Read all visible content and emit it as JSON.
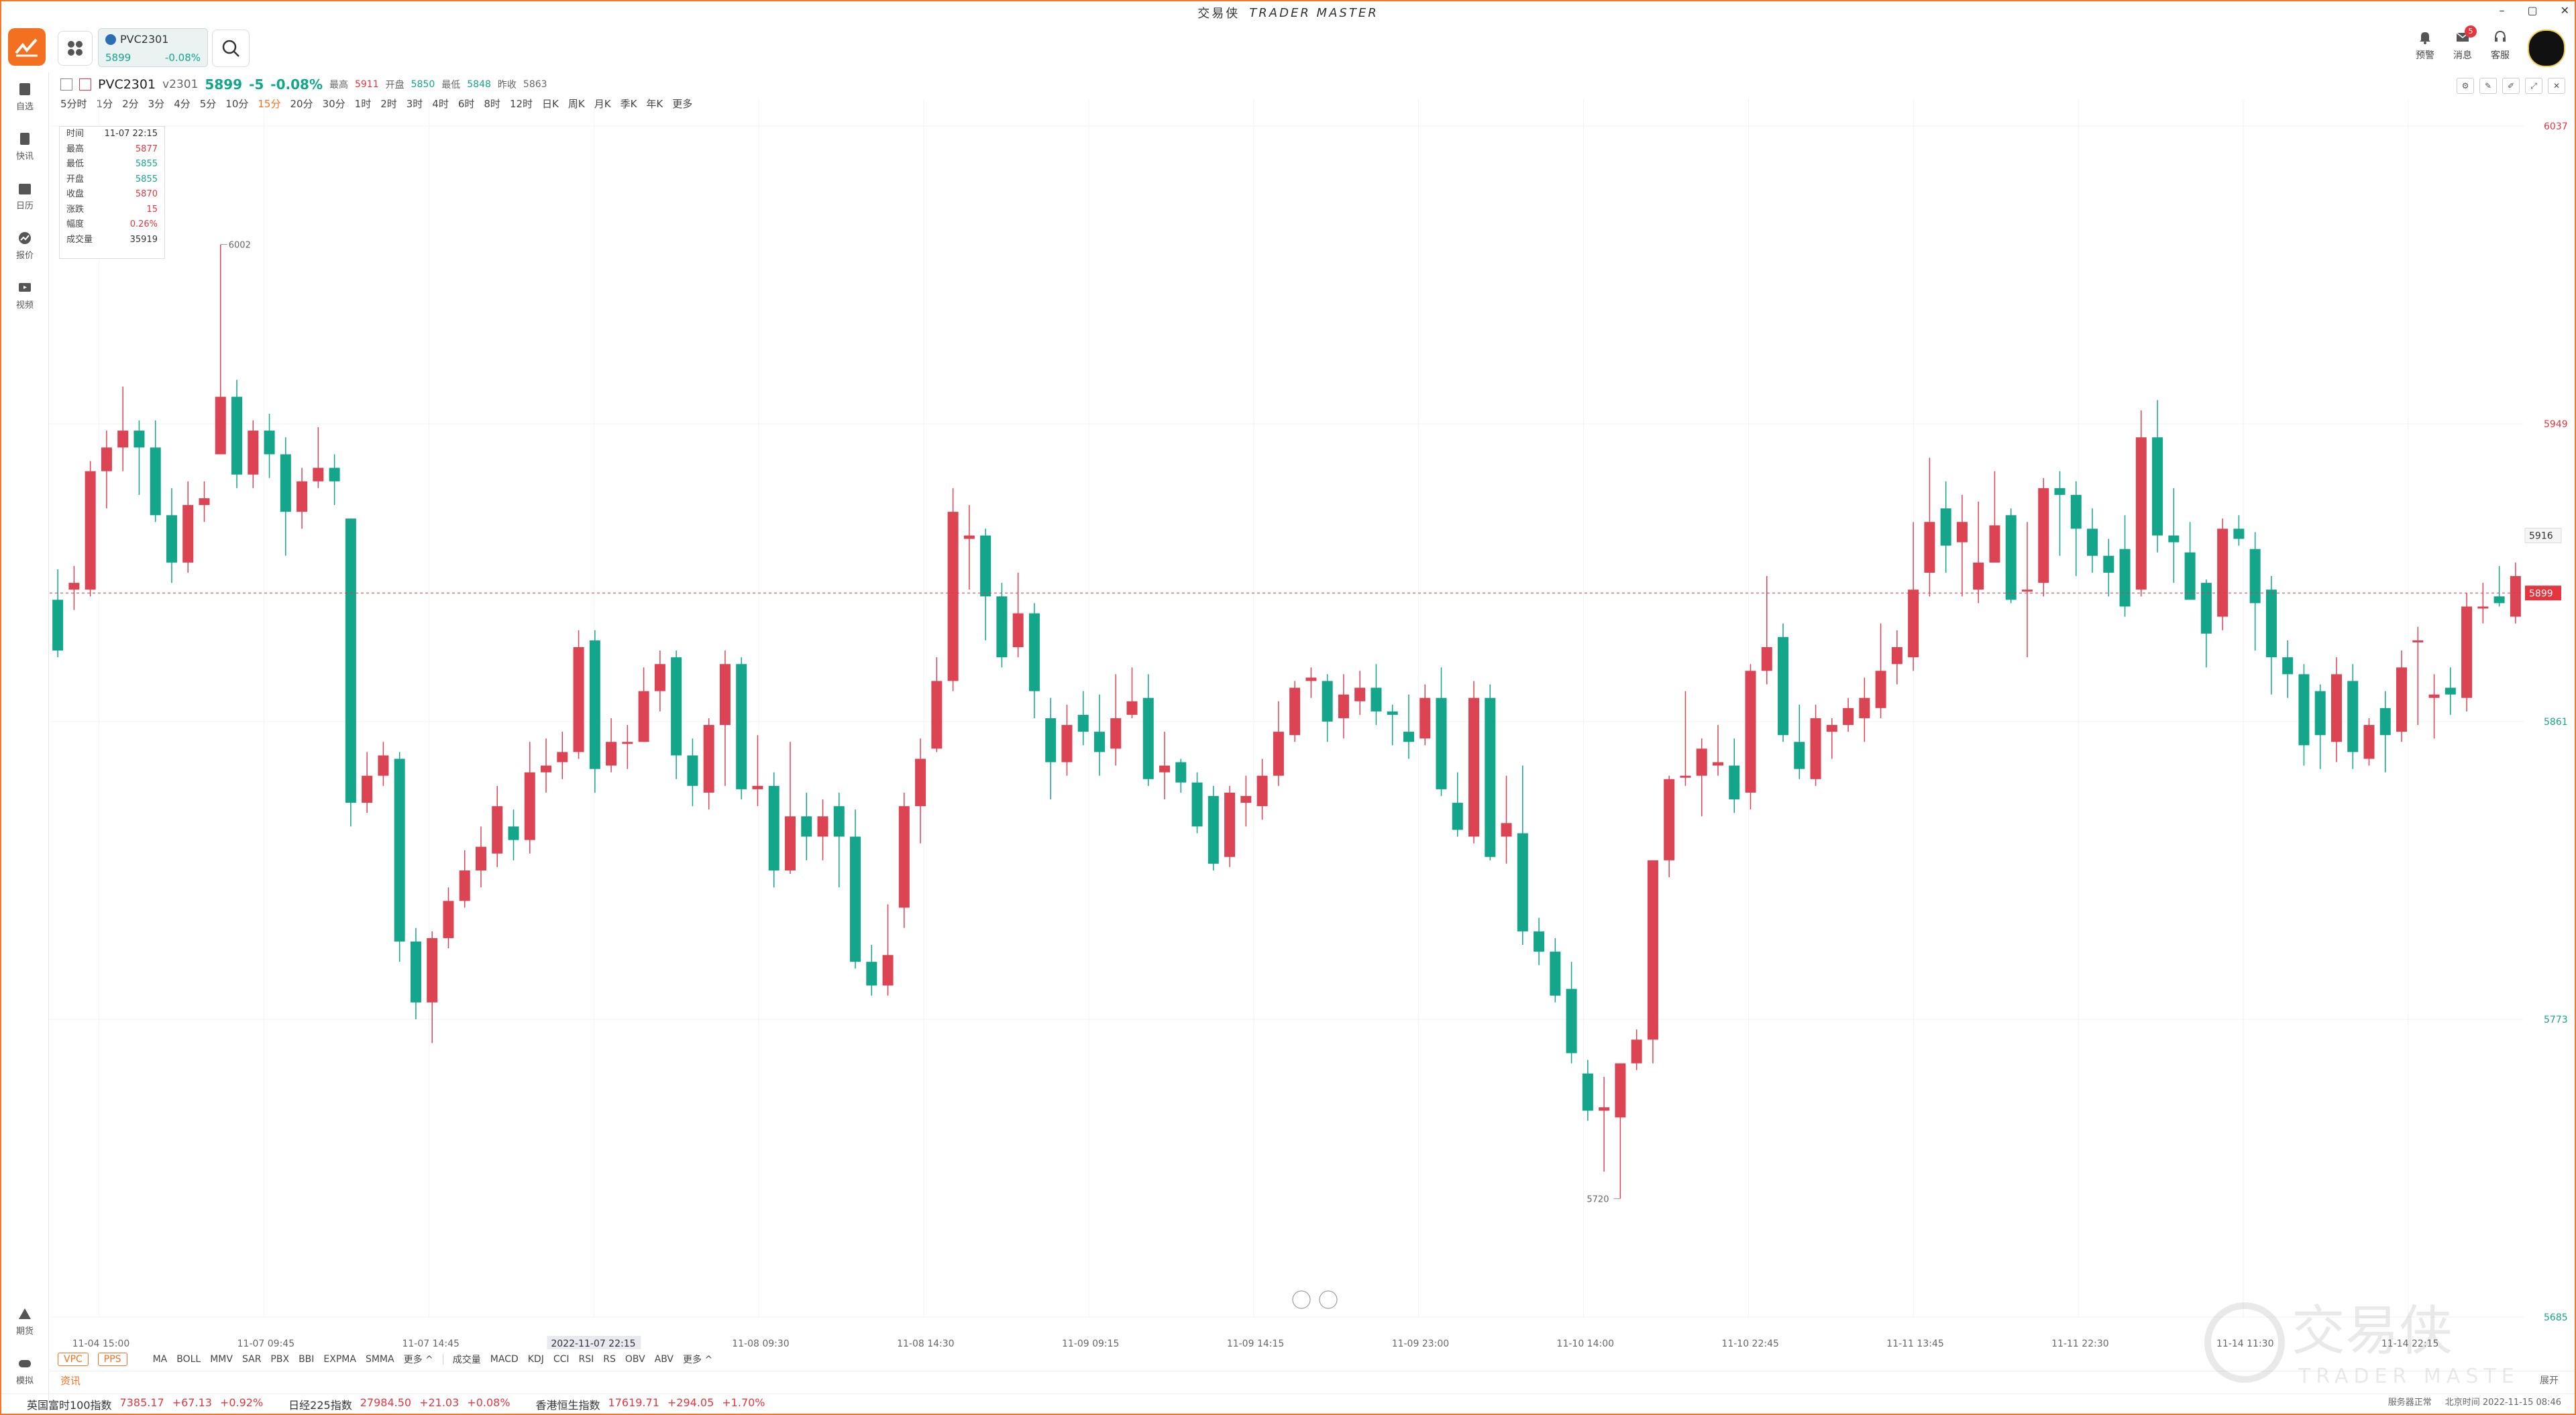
{
  "window": {
    "title_cn": "交易侠",
    "title_en": "TRADER MASTER",
    "ctrl_min": "–",
    "ctrl_max": "▢",
    "ctrl_close": "✕"
  },
  "header": {
    "quote_card": {
      "name": "PVC2301",
      "price": "5899",
      "change": "-0.08%"
    },
    "icons": [
      {
        "label": "预警"
      },
      {
        "label": "消息",
        "badge": "5"
      },
      {
        "label": "客服"
      }
    ]
  },
  "sidebar": {
    "top": [
      "自选",
      "快讯",
      "日历",
      "报价",
      "视频"
    ],
    "bottom": [
      "期货",
      "模拟"
    ]
  },
  "instrument": {
    "name": "PVC2301",
    "code": "v2301",
    "last": "5899",
    "chg": "-5",
    "pct": "-0.08%",
    "high_label": "最高",
    "high": "5911",
    "open_label": "开盘",
    "open": "5850",
    "low_label": "最低",
    "low": "5848",
    "prev_label": "昨收",
    "prev": "5863"
  },
  "timeframes": [
    "5分时",
    "1分",
    "2分",
    "3分",
    "4分",
    "5分",
    "10分",
    "15分",
    "20分",
    "30分",
    "1时",
    "2时",
    "3时",
    "4时",
    "6时",
    "8时",
    "12时",
    "日K",
    "周K",
    "月K",
    "季K",
    "年K",
    "更多"
  ],
  "active_timeframe": "15分",
  "tooltip": [
    {
      "k": "时间",
      "v": "11-07 22:15",
      "c": "#333"
    },
    {
      "k": "最高",
      "v": "5877",
      "c": "#e5363f"
    },
    {
      "k": "最低",
      "v": "5855",
      "c": "#12a68a"
    },
    {
      "k": "开盘",
      "v": "5855",
      "c": "#12a68a"
    },
    {
      "k": "收盘",
      "v": "5870",
      "c": "#e5363f"
    },
    {
      "k": "涨跌",
      "v": "15",
      "c": "#e5363f"
    },
    {
      "k": "幅度",
      "v": "0.26%",
      "c": "#e5363f"
    },
    {
      "k": "成交量",
      "v": "35919",
      "c": "#333"
    }
  ],
  "indicators": {
    "main": [
      "VPC",
      "PPS"
    ],
    "overlays": [
      "MA",
      "BOLL",
      "MMV",
      "SAR",
      "PBX",
      "BBI",
      "EXPMA",
      "SMMA",
      "更多 ^"
    ],
    "sub": [
      "成交量",
      "MACD",
      "KDJ",
      "CCI",
      "RSI",
      "RS",
      "OBV",
      "ABV",
      "更多 ^"
    ]
  },
  "news": {
    "label": "资讯",
    "more_label": "展开"
  },
  "ticker": [
    {
      "name": "英国富时100指数",
      "price": "7385.17",
      "chg": "+67.13",
      "pct": "+0.92%"
    },
    {
      "name": "日经225指数",
      "price": "27984.50",
      "chg": "+21.03",
      "pct": "+0.08%"
    },
    {
      "name": "香港恒生指数",
      "price": "17619.71",
      "chg": "+294.05",
      "pct": "+1.70%"
    }
  ],
  "status": {
    "server": "服务器正常",
    "time": "北京时间 2022-11-15 08:46"
  },
  "watermark": {
    "cn": "交易侠",
    "en": "TRADER MASTER"
  },
  "chart_data": {
    "type": "candlestick",
    "ylim": [
      5685,
      6037
    ],
    "y_ticks": [
      6037,
      5949,
      5916,
      5899,
      5861,
      5773,
      5685
    ],
    "last_price": 5899,
    "crosshair_price": 5916,
    "x_labels": [
      "11-04 15:00",
      "11-07 09:45",
      "11-07 14:45",
      "2022-11-07 22:15",
      "11-08 09:30",
      "11-08 14:30",
      "11-09 09:15",
      "11-09 14:15",
      "11-09 23:00",
      "11-10 14:00",
      "11-10 22:45",
      "11-11 13:45",
      "11-11 22:30",
      "11-14 11:30",
      "11-14 22:15"
    ],
    "annotations": [
      {
        "text": "6002"
      },
      {
        "text": "5720"
      }
    ],
    "candles": [
      [
        5897,
        5882,
        5906,
        5880
      ],
      [
        5900,
        5902,
        5907,
        5894
      ],
      [
        5900,
        5935,
        5938,
        5898
      ],
      [
        5935,
        5942,
        5947,
        5924
      ],
      [
        5942,
        5947,
        5960,
        5935
      ],
      [
        5947,
        5942,
        5950,
        5928
      ],
      [
        5942,
        5922,
        5950,
        5920
      ],
      [
        5922,
        5908,
        5930,
        5902
      ],
      [
        5908,
        5925,
        5932,
        5905
      ],
      [
        5925,
        5927,
        5932,
        5920
      ],
      [
        5940,
        5957,
        6002,
        5955
      ],
      [
        5957,
        5934,
        5962,
        5930
      ],
      [
        5934,
        5947,
        5950,
        5930
      ],
      [
        5947,
        5940,
        5952,
        5933
      ],
      [
        5940,
        5923,
        5945,
        5910
      ],
      [
        5923,
        5932,
        5936,
        5918
      ],
      [
        5932,
        5936,
        5948,
        5930
      ],
      [
        5936,
        5932,
        5940,
        5925
      ],
      [
        5921,
        5837,
        5921,
        5830
      ],
      [
        5837,
        5845,
        5852,
        5834
      ],
      [
        5845,
        5851,
        5855,
        5842
      ],
      [
        5850,
        5796,
        5852,
        5790
      ],
      [
        5796,
        5778,
        5800,
        5773
      ],
      [
        5778,
        5797,
        5799,
        5766
      ],
      [
        5797,
        5808,
        5812,
        5794
      ],
      [
        5808,
        5817,
        5823,
        5806
      ],
      [
        5817,
        5824,
        5830,
        5812
      ],
      [
        5822,
        5836,
        5842,
        5818
      ],
      [
        5830,
        5826,
        5835,
        5820
      ],
      [
        5826,
        5846,
        5855,
        5822
      ],
      [
        5846,
        5848,
        5856,
        5840
      ],
      [
        5849,
        5852,
        5858,
        5844
      ],
      [
        5852,
        5883,
        5888,
        5850
      ],
      [
        5885,
        5847,
        5888,
        5840
      ],
      [
        5848,
        5855,
        5862,
        5846
      ],
      [
        5855,
        5855,
        5860,
        5847
      ],
      [
        5855,
        5870,
        5877,
        5855
      ],
      [
        5870,
        5878,
        5882,
        5864
      ],
      [
        5880,
        5851,
        5882,
        5844
      ],
      [
        5851,
        5842,
        5856,
        5836
      ],
      [
        5840,
        5860,
        5862,
        5835
      ],
      [
        5860,
        5878,
        5882,
        5842
      ],
      [
        5878,
        5841,
        5880,
        5838
      ],
      [
        5841,
        5842,
        5857,
        5836
      ],
      [
        5842,
        5817,
        5846,
        5812
      ],
      [
        5817,
        5833,
        5855,
        5816
      ],
      [
        5833,
        5827,
        5840,
        5820
      ],
      [
        5827,
        5833,
        5838,
        5820
      ],
      [
        5836,
        5827,
        5840,
        5812
      ],
      [
        5827,
        5790,
        5835,
        5788
      ],
      [
        5790,
        5783,
        5795,
        5780
      ],
      [
        5783,
        5792,
        5807,
        5780
      ],
      [
        5806,
        5836,
        5840,
        5800
      ],
      [
        5836,
        5850,
        5856,
        5825
      ],
      [
        5853,
        5873,
        5880,
        5852
      ],
      [
        5873,
        5923,
        5930,
        5870
      ],
      [
        5915,
        5916,
        5925,
        5900
      ],
      [
        5916,
        5898,
        5918,
        5885
      ],
      [
        5898,
        5880,
        5902,
        5877
      ],
      [
        5883,
        5893,
        5905,
        5880
      ],
      [
        5893,
        5870,
        5896,
        5862
      ],
      [
        5862,
        5849,
        5868,
        5838
      ],
      [
        5849,
        5860,
        5866,
        5845
      ],
      [
        5863,
        5858,
        5870,
        5854
      ],
      [
        5858,
        5852,
        5869,
        5845
      ],
      [
        5853,
        5862,
        5875,
        5848
      ],
      [
        5863,
        5867,
        5877,
        5862
      ],
      [
        5868,
        5844,
        5875,
        5842
      ],
      [
        5846,
        5848,
        5858,
        5838
      ],
      [
        5849,
        5843,
        5850,
        5840
      ],
      [
        5843,
        5830,
        5846,
        5828
      ],
      [
        5839,
        5819,
        5842,
        5817
      ],
      [
        5821,
        5840,
        5842,
        5818
      ],
      [
        5837,
        5839,
        5845,
        5830
      ],
      [
        5836,
        5845,
        5850,
        5832
      ],
      [
        5845,
        5858,
        5867,
        5842
      ],
      [
        5857,
        5871,
        5873,
        5855
      ],
      [
        5873,
        5874,
        5877,
        5868
      ],
      [
        5873,
        5861,
        5875,
        5855
      ],
      [
        5862,
        5869,
        5875,
        5856
      ],
      [
        5867,
        5871,
        5876,
        5863
      ],
      [
        5871,
        5864,
        5878,
        5860
      ],
      [
        5864,
        5863,
        5866,
        5854
      ],
      [
        5858,
        5855,
        5869,
        5850
      ],
      [
        5856,
        5868,
        5872,
        5854
      ],
      [
        5868,
        5841,
        5877,
        5839
      ],
      [
        5837,
        5829,
        5846,
        5827
      ],
      [
        5827,
        5868,
        5873,
        5825
      ],
      [
        5868,
        5821,
        5872,
        5820
      ],
      [
        5827,
        5831,
        5845,
        5819
      ],
      [
        5828,
        5799,
        5848,
        5795
      ],
      [
        5799,
        5793,
        5803,
        5789
      ],
      [
        5793,
        5780,
        5797,
        5778
      ],
      [
        5782,
        5763,
        5790,
        5760
      ],
      [
        5757,
        5746,
        5761,
        5743
      ],
      [
        5746,
        5747,
        5756,
        5728
      ],
      [
        5744,
        5760,
        5760,
        5720
      ],
      [
        5760,
        5767,
        5770,
        5758
      ],
      [
        5767,
        5820,
        5820,
        5760
      ],
      [
        5820,
        5844,
        5845,
        5815
      ],
      [
        5845,
        5845,
        5870,
        5842
      ],
      [
        5845,
        5853,
        5856,
        5833
      ],
      [
        5848,
        5849,
        5860,
        5845
      ],
      [
        5848,
        5838,
        5856,
        5834
      ],
      [
        5840,
        5876,
        5878,
        5835
      ],
      [
        5876,
        5883,
        5904,
        5872
      ],
      [
        5886,
        5857,
        5890,
        5855
      ],
      [
        5855,
        5847,
        5866,
        5844
      ],
      [
        5844,
        5862,
        5866,
        5842
      ],
      [
        5858,
        5860,
        5862,
        5850
      ],
      [
        5860,
        5865,
        5868,
        5858
      ],
      [
        5862,
        5868,
        5874,
        5855
      ],
      [
        5865,
        5876,
        5890,
        5862
      ],
      [
        5878,
        5883,
        5888,
        5872
      ],
      [
        5880,
        5900,
        5920,
        5876
      ],
      [
        5905,
        5920,
        5939,
        5898
      ],
      [
        5924,
        5913,
        5932,
        5905
      ],
      [
        5914,
        5920,
        5928,
        5898
      ],
      [
        5900,
        5908,
        5926,
        5896
      ],
      [
        5908,
        5919,
        5935,
        5910
      ],
      [
        5922,
        5897,
        5924,
        5896
      ],
      [
        5900,
        5900,
        5920,
        5880
      ],
      [
        5902,
        5930,
        5933,
        5898
      ],
      [
        5930,
        5928,
        5935,
        5910
      ],
      [
        5928,
        5918,
        5932,
        5904
      ],
      [
        5918,
        5910,
        5924,
        5905
      ],
      [
        5910,
        5905,
        5915,
        5898
      ],
      [
        5912,
        5895,
        5922,
        5892
      ],
      [
        5900,
        5945,
        5953,
        5898
      ],
      [
        5945,
        5916,
        5956,
        5911
      ],
      [
        5916,
        5914,
        5930,
        5902
      ],
      [
        5911,
        5897,
        5920,
        5898
      ],
      [
        5902,
        5887,
        5903,
        5877
      ],
      [
        5892,
        5918,
        5921,
        5888
      ],
      [
        5918,
        5915,
        5922,
        5913
      ],
      [
        5912,
        5896,
        5917,
        5882
      ],
      [
        5900,
        5880,
        5904,
        5869
      ],
      [
        5880,
        5875,
        5885,
        5868
      ],
      [
        5875,
        5854,
        5878,
        5848
      ],
      [
        5870,
        5857,
        5872,
        5847
      ],
      [
        5855,
        5875,
        5880,
        5849
      ],
      [
        5873,
        5852,
        5878,
        5847
      ],
      [
        5850,
        5860,
        5862,
        5848
      ],
      [
        5865,
        5857,
        5870,
        5846
      ],
      [
        5858,
        5877,
        5882,
        5855
      ],
      [
        5885,
        5885,
        5889,
        5860
      ],
      [
        5868,
        5869,
        5875,
        5856
      ],
      [
        5871,
        5869,
        5877,
        5863
      ],
      [
        5868,
        5895,
        5899,
        5864
      ],
      [
        5895,
        5895,
        5902,
        5890
      ],
      [
        5898,
        5896,
        5907,
        5895
      ],
      [
        5892,
        5904,
        5908,
        5890
      ]
    ]
  }
}
